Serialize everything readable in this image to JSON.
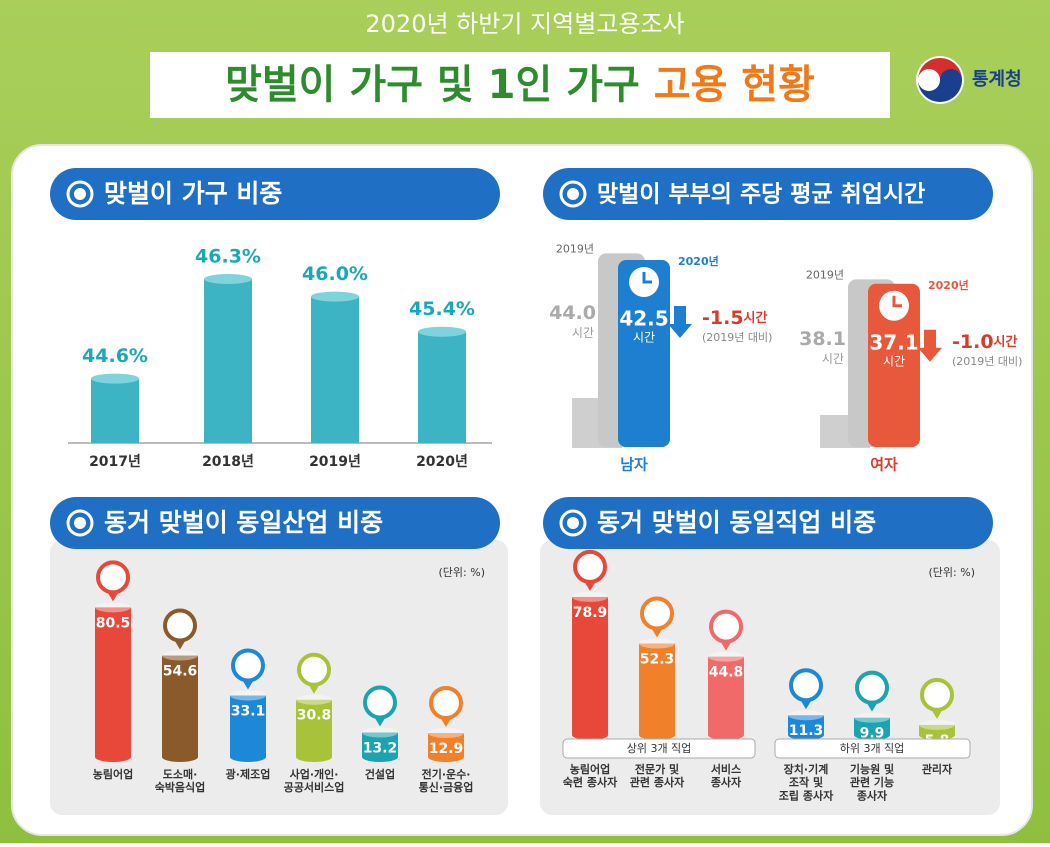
{
  "header": {
    "subtitle": "2020년 하반기 지역별고용조사",
    "title_main": "맞벌이 가구 및 1인 가구",
    "title_highlight": "고용 현황",
    "logo": "통계청"
  },
  "chart_data": [
    {
      "type": "bar",
      "title": "맞벌이 가구 비중",
      "categories": [
        "2017년",
        "2018년",
        "2019년",
        "2020년"
      ],
      "values": [
        44.6,
        46.3,
        46.0,
        45.4
      ],
      "value_labels": [
        "44.6%",
        "46.3%",
        "46.0%",
        "45.4%"
      ],
      "color": "#3cb4c4",
      "ylim": [
        43.5,
        47
      ]
    },
    {
      "type": "paired-bar",
      "title": "맞벌이 부부의 주당 평균 취업시간",
      "categories": [
        "남자",
        "여자"
      ],
      "category_colors": [
        "#1e7fd0",
        "#d93a2a"
      ],
      "unit": "시간",
      "series": [
        {
          "name": "2019년",
          "color": "#c8c8c8",
          "values": [
            44.0,
            38.1
          ],
          "value_labels": [
            "44.0",
            "38.1"
          ]
        },
        {
          "name": "2020년",
          "colors": [
            "#1e7fd0",
            "#e8583a"
          ],
          "values": [
            42.5,
            37.1
          ],
          "value_labels": [
            "42.5",
            "37.1"
          ]
        }
      ],
      "change": {
        "values": [
          -1.5,
          -1.0
        ],
        "value_labels": [
          "-1.5",
          "-1.0"
        ],
        "note": "(2019년 대비)"
      },
      "ylim": [
        0,
        45
      ]
    },
    {
      "type": "cylinder",
      "title": "동거 맞벌이 동일산업 비중",
      "unit": "(단위: %)",
      "categories": [
        "농림어업",
        "도소매·\n숙박음식업",
        "광·제조업",
        "사업·개인·\n공공서비스업",
        "건설업",
        "전기·운수·\n통신·금융업"
      ],
      "values": [
        80.5,
        54.6,
        33.1,
        30.8,
        13.2,
        12.9
      ],
      "colors": [
        "#e8483a",
        "#8b5a2b",
        "#1e88d8",
        "#a8c23a",
        "#1ba3b0",
        "#f0802a"
      ],
      "ylim": [
        0,
        85
      ]
    },
    {
      "type": "cylinder",
      "title": "동거 맞벌이 동일직업 비중",
      "unit": "(단위: %)",
      "categories": [
        "농림어업\n숙련 종사자",
        "전문가 및\n관련 종사자",
        "서비스\n종사자",
        "장치·기계\n조작 및\n조립 종사자",
        "기능원 및\n관련 기능\n종사자",
        "관리자"
      ],
      "values": [
        78.9,
        52.3,
        44.8,
        11.3,
        9.9,
        5.8
      ],
      "colors": [
        "#e8483a",
        "#f0802a",
        "#f06a6a",
        "#1e88d8",
        "#1ba3b0",
        "#a8c23a"
      ],
      "groups": [
        "상위 3개 직업",
        "하위 3개 직업"
      ],
      "ylim": [
        0,
        80
      ]
    }
  ]
}
